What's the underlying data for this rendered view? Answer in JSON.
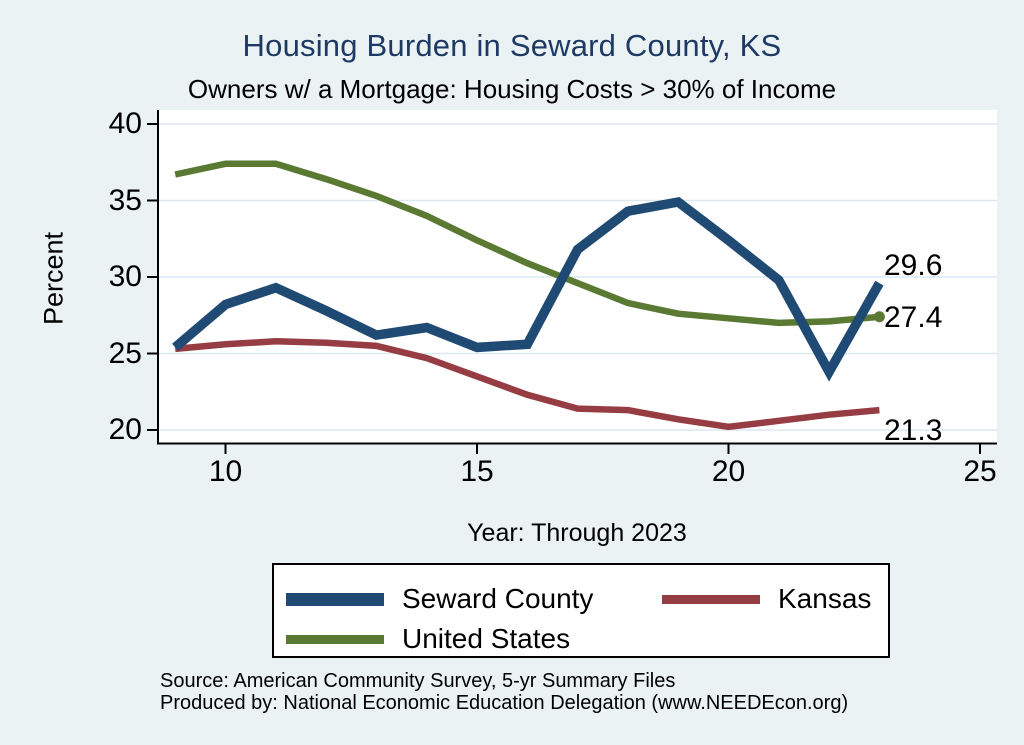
{
  "title": "Housing Burden in Seward County, KS",
  "subtitle": "Owners w/ a Mortgage: Housing Costs > 30% of Income",
  "source_line1": "Source: American Community Survey, 5-yr Summary Files",
  "source_line2": "Produced by: National Economic Education Delegation (www.NEEDEcon.org)",
  "colors": {
    "background": "#EAF2F3",
    "plot_background": "#FFFFFF",
    "gridline": "#DCE9F0",
    "axis": "#000000",
    "title_text": "#1E3A64",
    "seward_navy": "#1F4A73",
    "kansas_maroon": "#963D44",
    "us_olive": "#5A7A33"
  },
  "chart_data": {
    "type": "line",
    "title": "Housing Burden in Seward County, KS",
    "subtitle": "Owners w/ a Mortgage: Housing Costs > 30% of Income",
    "xlabel": "Year: Through 2023",
    "ylabel": "Percent",
    "x": [
      9,
      10,
      11,
      12,
      13,
      14,
      15,
      16,
      17,
      18,
      19,
      20,
      21,
      22,
      23
    ],
    "x_tick_labels": [
      "10",
      "15",
      "20",
      "25"
    ],
    "x_ticks": [
      10,
      15,
      20,
      25
    ],
    "y_tick_labels": [
      "20",
      "25",
      "30",
      "35",
      "40"
    ],
    "y_ticks": [
      20,
      25,
      30,
      35,
      40
    ],
    "xlim": [
      8.65,
      25.4
    ],
    "ylim": [
      18.9,
      40.9
    ],
    "grid": "horizontal",
    "legend_position": "bottom",
    "series": [
      {
        "name": "Seward County",
        "color": "#1F4A73",
        "line_width": 9.5,
        "values": [
          25.4,
          28.2,
          29.3,
          27.8,
          26.2,
          26.7,
          25.4,
          25.6,
          31.8,
          34.3,
          34.9,
          32.4,
          29.8,
          23.8,
          29.6
        ],
        "end_label": "29.6",
        "end_marker": false
      },
      {
        "name": "Kansas",
        "color": "#963D44",
        "line_width": 6.5,
        "values": [
          25.3,
          25.6,
          25.8,
          25.7,
          25.5,
          24.7,
          23.5,
          22.3,
          21.4,
          21.3,
          20.7,
          20.2,
          20.6,
          21.0,
          21.3
        ],
        "end_label": "21.3",
        "end_marker": false
      },
      {
        "name": "United States",
        "color": "#5A7A33",
        "line_width": 6.5,
        "values": [
          36.7,
          37.4,
          37.4,
          36.4,
          35.3,
          34.0,
          32.4,
          30.9,
          29.6,
          28.3,
          27.6,
          27.3,
          27.0,
          27.1,
          27.4
        ],
        "end_label": "27.4",
        "end_marker": true
      }
    ]
  }
}
